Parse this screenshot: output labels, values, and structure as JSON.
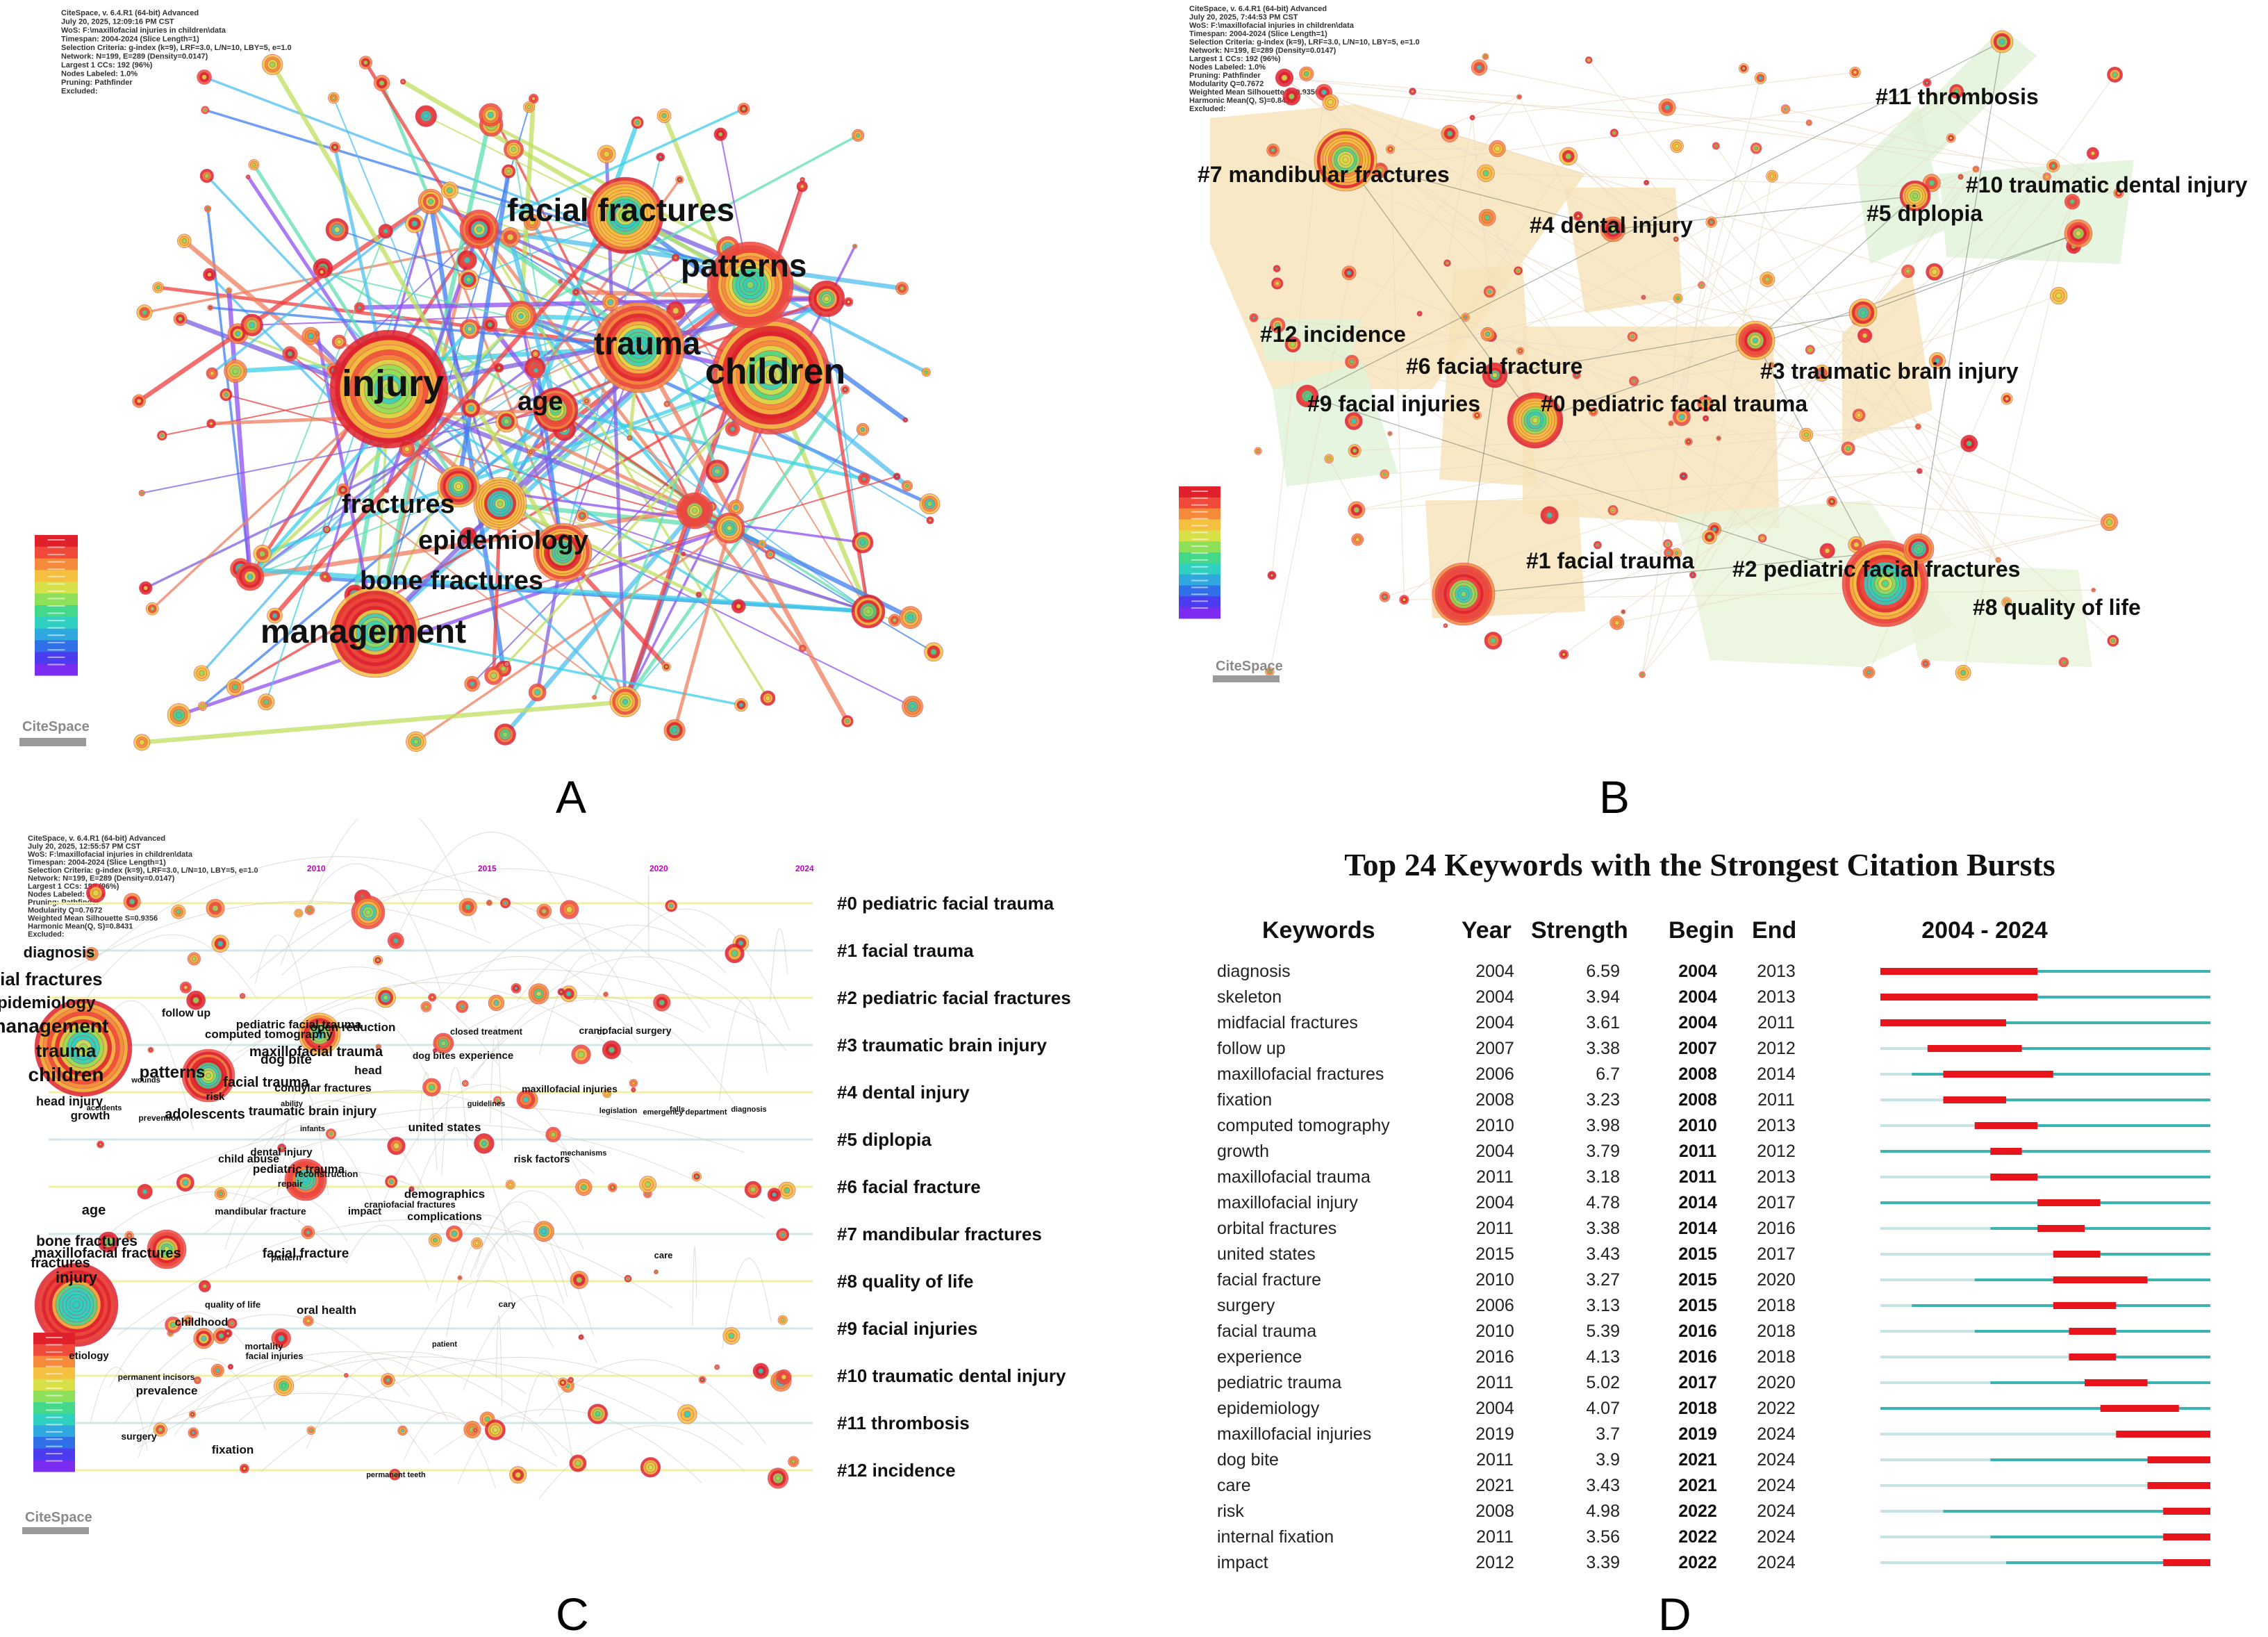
{
  "panels": {
    "A": {
      "letter": "A",
      "meta": [
        "CiteSpace, v. 6.4.R1 (64-bit) Advanced",
        "July 20, 2025, 12:09:16 PM CST",
        "WoS: F:\\maxillofacial injuries in children\\data",
        "Timespan: 2004-2024 (Slice Length=1)",
        "Selection Criteria: g-index (k=9), LRF=3.0, L/N=10, LBY=5, e=1.0",
        "Network: N=199, E=289 (Density=0.0147)",
        "Largest 1 CCs: 192 (96%)",
        "Nodes Labeled: 1.0%",
        "Pruning: Pathfinder",
        "Excluded:"
      ],
      "labels": [
        "facial fractures",
        "patterns",
        "trauma",
        "children",
        "injury",
        "age",
        "fractures",
        "epidemiology",
        "bone fractures",
        "management"
      ],
      "logo": "CiteSpace"
    },
    "B": {
      "letter": "B",
      "meta": [
        "CiteSpace, v. 6.4.R1 (64-bit) Advanced",
        "July 20, 2025, 7:44:53 PM CST",
        "WoS: F:\\maxillofacial injuries in children\\data",
        "Timespan: 2004-2024 (Slice Length=1)",
        "Selection Criteria: g-index (k=9), LRF=3.0, L/N=10, LBY=5, e=1.0",
        "Network: N=199, E=289 (Density=0.0147)",
        "Largest 1 CCs: 192 (96%)",
        "Nodes Labeled: 1.0%",
        "Pruning: Pathfinder",
        "Modularity Q=0.7672",
        "Weighted Mean Silhouette S=0.9356",
        "Harmonic Mean(Q, S)=0.8431",
        "Excluded:"
      ],
      "clusters": [
        "#11 thrombosis",
        "#7 mandibular fractures",
        "#10 traumatic dental injury",
        "#4 dental injury",
        "#5 diplopia",
        "#12 incidence",
        "#6 facial fracture",
        "#3 traumatic brain injury",
        "#9 facial injuries",
        "#0 pediatric facial trauma",
        "#1 facial trauma",
        "#2 pediatric facial fractures",
        "#8 quality of life"
      ],
      "logo": "CiteSpace"
    },
    "C": {
      "letter": "C",
      "meta": [
        "CiteSpace, v. 6.4.R1 (64-bit) Advanced",
        "July 20, 2025, 12:55:57 PM CST",
        "WoS: F:\\maxillofacial injuries in children\\data",
        "Timespan: 2004-2024 (Slice Length=1)",
        "Selection Criteria: g-index (k=9), LRF=3.0, L/N=10, LBY=5, e=1.0",
        "Network: N=199, E=289 (Density=0.0147)",
        "Largest 1 CCs: 192 (96%)",
        "Nodes Labeled: 1.0%",
        "Pruning: Pathfinder",
        "Modularity Q=0.7672",
        "Weighted Mean Silhouette S=0.9356",
        "Harmonic Mean(Q, S)=0.8431",
        "Excluded:"
      ],
      "years": [
        "2010",
        "2015",
        "2020",
        "2024"
      ],
      "clusters": [
        "#0 pediatric facial trauma",
        "#1 facial trauma",
        "#2 pediatric facial fractures",
        "#3 traumatic brain injury",
        "#4 dental injury",
        "#5 diplopia",
        "#6 facial fracture",
        "#7 mandibular fractures",
        "#8 quality of life",
        "#9 facial injuries",
        "#10 traumatic dental injury",
        "#11 thrombosis",
        "#12 incidence"
      ],
      "big_labels": [
        "diagnosis",
        "facial fractures",
        "epidemiology",
        "management",
        "trauma",
        "children",
        "patterns",
        "head injury",
        "growth",
        "adolescents",
        "facial trauma",
        "dog bite",
        "head",
        "maxillofacial trauma",
        "computed tomography",
        "pediatric facial trauma",
        "open reduction",
        "follow up",
        "condylar fractures",
        "traumatic brain injury",
        "united states",
        "risk",
        "prevention",
        "dog bites",
        "experience",
        "closed treatment",
        "ct",
        "craniofacial surgery",
        "maxillofacial injuries",
        "emergency department",
        "legislation",
        "risk factors",
        "child abuse",
        "dental injury",
        "pediatric trauma",
        "repair",
        "reconstruction",
        "age",
        "bone fractures",
        "maxillofacial fractures",
        "mandibular fracture",
        "facial fracture",
        "impact",
        "demographics",
        "craniofacial fractures",
        "complications",
        "pattern",
        "care",
        "fractures",
        "injury",
        "quality of life",
        "oral health",
        "childhood",
        "mortality",
        "facial injuries",
        "cary",
        "etiology",
        "prevalence",
        "permanent incisors",
        "surgery",
        "fixation",
        "accidents",
        "infants",
        "mechanisms",
        "permanent teeth",
        "wounds",
        "ability",
        "guidelines",
        "falls",
        "diagnosis",
        "patient"
      ],
      "logo": "CiteSpace"
    },
    "D": {
      "letter": "D"
    }
  },
  "chart_data": {
    "type": "table",
    "title": "Top 24 Keywords with the Strongest Citation Bursts",
    "columns": [
      "Keywords",
      "Year",
      "Strength",
      "Begin",
      "End",
      "2004 - 2024"
    ],
    "timeline_range": [
      2004,
      2024
    ],
    "colors": {
      "burst": "#e8141b",
      "active": "#3bb3b0",
      "inactive": "#c6e4e4"
    },
    "rows": [
      {
        "keyword": "diagnosis",
        "year": 2004,
        "strength": 6.59,
        "begin": 2004,
        "end": 2013
      },
      {
        "keyword": "skeleton",
        "year": 2004,
        "strength": 3.94,
        "begin": 2004,
        "end": 2013
      },
      {
        "keyword": "midfacial fractures",
        "year": 2004,
        "strength": 3.61,
        "begin": 2004,
        "end": 2011
      },
      {
        "keyword": "follow up",
        "year": 2007,
        "strength": 3.38,
        "begin": 2007,
        "end": 2012
      },
      {
        "keyword": "maxillofacial fractures",
        "year": 2006,
        "strength": 6.7,
        "begin": 2008,
        "end": 2014
      },
      {
        "keyword": "fixation",
        "year": 2008,
        "strength": 3.23,
        "begin": 2008,
        "end": 2011
      },
      {
        "keyword": "computed tomography",
        "year": 2010,
        "strength": 3.98,
        "begin": 2010,
        "end": 2013
      },
      {
        "keyword": "growth",
        "year": 2004,
        "strength": 3.79,
        "begin": 2011,
        "end": 2012
      },
      {
        "keyword": "maxillofacial trauma",
        "year": 2011,
        "strength": 3.18,
        "begin": 2011,
        "end": 2013
      },
      {
        "keyword": "maxillofacial injury",
        "year": 2004,
        "strength": 4.78,
        "begin": 2014,
        "end": 2017
      },
      {
        "keyword": "orbital fractures",
        "year": 2011,
        "strength": 3.38,
        "begin": 2014,
        "end": 2016
      },
      {
        "keyword": "united states",
        "year": 2015,
        "strength": 3.43,
        "begin": 2015,
        "end": 2017
      },
      {
        "keyword": "facial fracture",
        "year": 2010,
        "strength": 3.27,
        "begin": 2015,
        "end": 2020
      },
      {
        "keyword": "surgery",
        "year": 2006,
        "strength": 3.13,
        "begin": 2015,
        "end": 2018
      },
      {
        "keyword": "facial trauma",
        "year": 2010,
        "strength": 5.39,
        "begin": 2016,
        "end": 2018
      },
      {
        "keyword": "experience",
        "year": 2016,
        "strength": 4.13,
        "begin": 2016,
        "end": 2018
      },
      {
        "keyword": "pediatric trauma",
        "year": 2011,
        "strength": 5.02,
        "begin": 2017,
        "end": 2020
      },
      {
        "keyword": "epidemiology",
        "year": 2004,
        "strength": 4.07,
        "begin": 2018,
        "end": 2022
      },
      {
        "keyword": "maxillofacial injuries",
        "year": 2019,
        "strength": 3.7,
        "begin": 2019,
        "end": 2024
      },
      {
        "keyword": "dog bite",
        "year": 2011,
        "strength": 3.9,
        "begin": 2021,
        "end": 2024
      },
      {
        "keyword": "care",
        "year": 2021,
        "strength": 3.43,
        "begin": 2021,
        "end": 2024
      },
      {
        "keyword": "risk",
        "year": 2008,
        "strength": 4.98,
        "begin": 2022,
        "end": 2024
      },
      {
        "keyword": "internal fixation",
        "year": 2011,
        "strength": 3.56,
        "begin": 2022,
        "end": 2024
      },
      {
        "keyword": "impact",
        "year": 2012,
        "strength": 3.39,
        "begin": 2022,
        "end": 2024
      }
    ]
  }
}
